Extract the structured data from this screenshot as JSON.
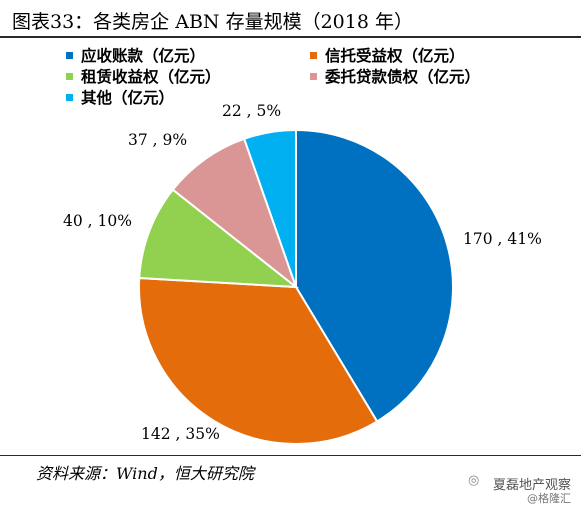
{
  "chart_data": {
    "type": "pie",
    "title": "图表33：各类房企 ABN 存量规模（2018 年）",
    "slices": [
      {
        "name": "应收账款（亿元）",
        "value": 170,
        "pct": 41,
        "label": "170 , 41%",
        "color": "#0070c0"
      },
      {
        "name": "信托受益权（亿元）",
        "value": 142,
        "pct": 35,
        "label": "142 , 35%",
        "color": "#e46c0a"
      },
      {
        "name": "租赁收益权（亿元）",
        "value": 40,
        "pct": 10,
        "label": "40 , 10%",
        "color": "#92d050"
      },
      {
        "name": "委托贷款债权（亿元）",
        "value": 37,
        "pct": 9,
        "label": "37 , 9%",
        "color": "#d99694"
      },
      {
        "name": "其他（亿元）",
        "value": 22,
        "pct": 5,
        "label": "22 , 5%",
        "color": "#00b0f0"
      }
    ],
    "legend_position": "top"
  },
  "source": "资料来源：Wind，恒大研究院",
  "watermark": {
    "line1": "夏磊地产观察",
    "line2": "@格隆汇",
    "icon": "wechat-icon"
  }
}
